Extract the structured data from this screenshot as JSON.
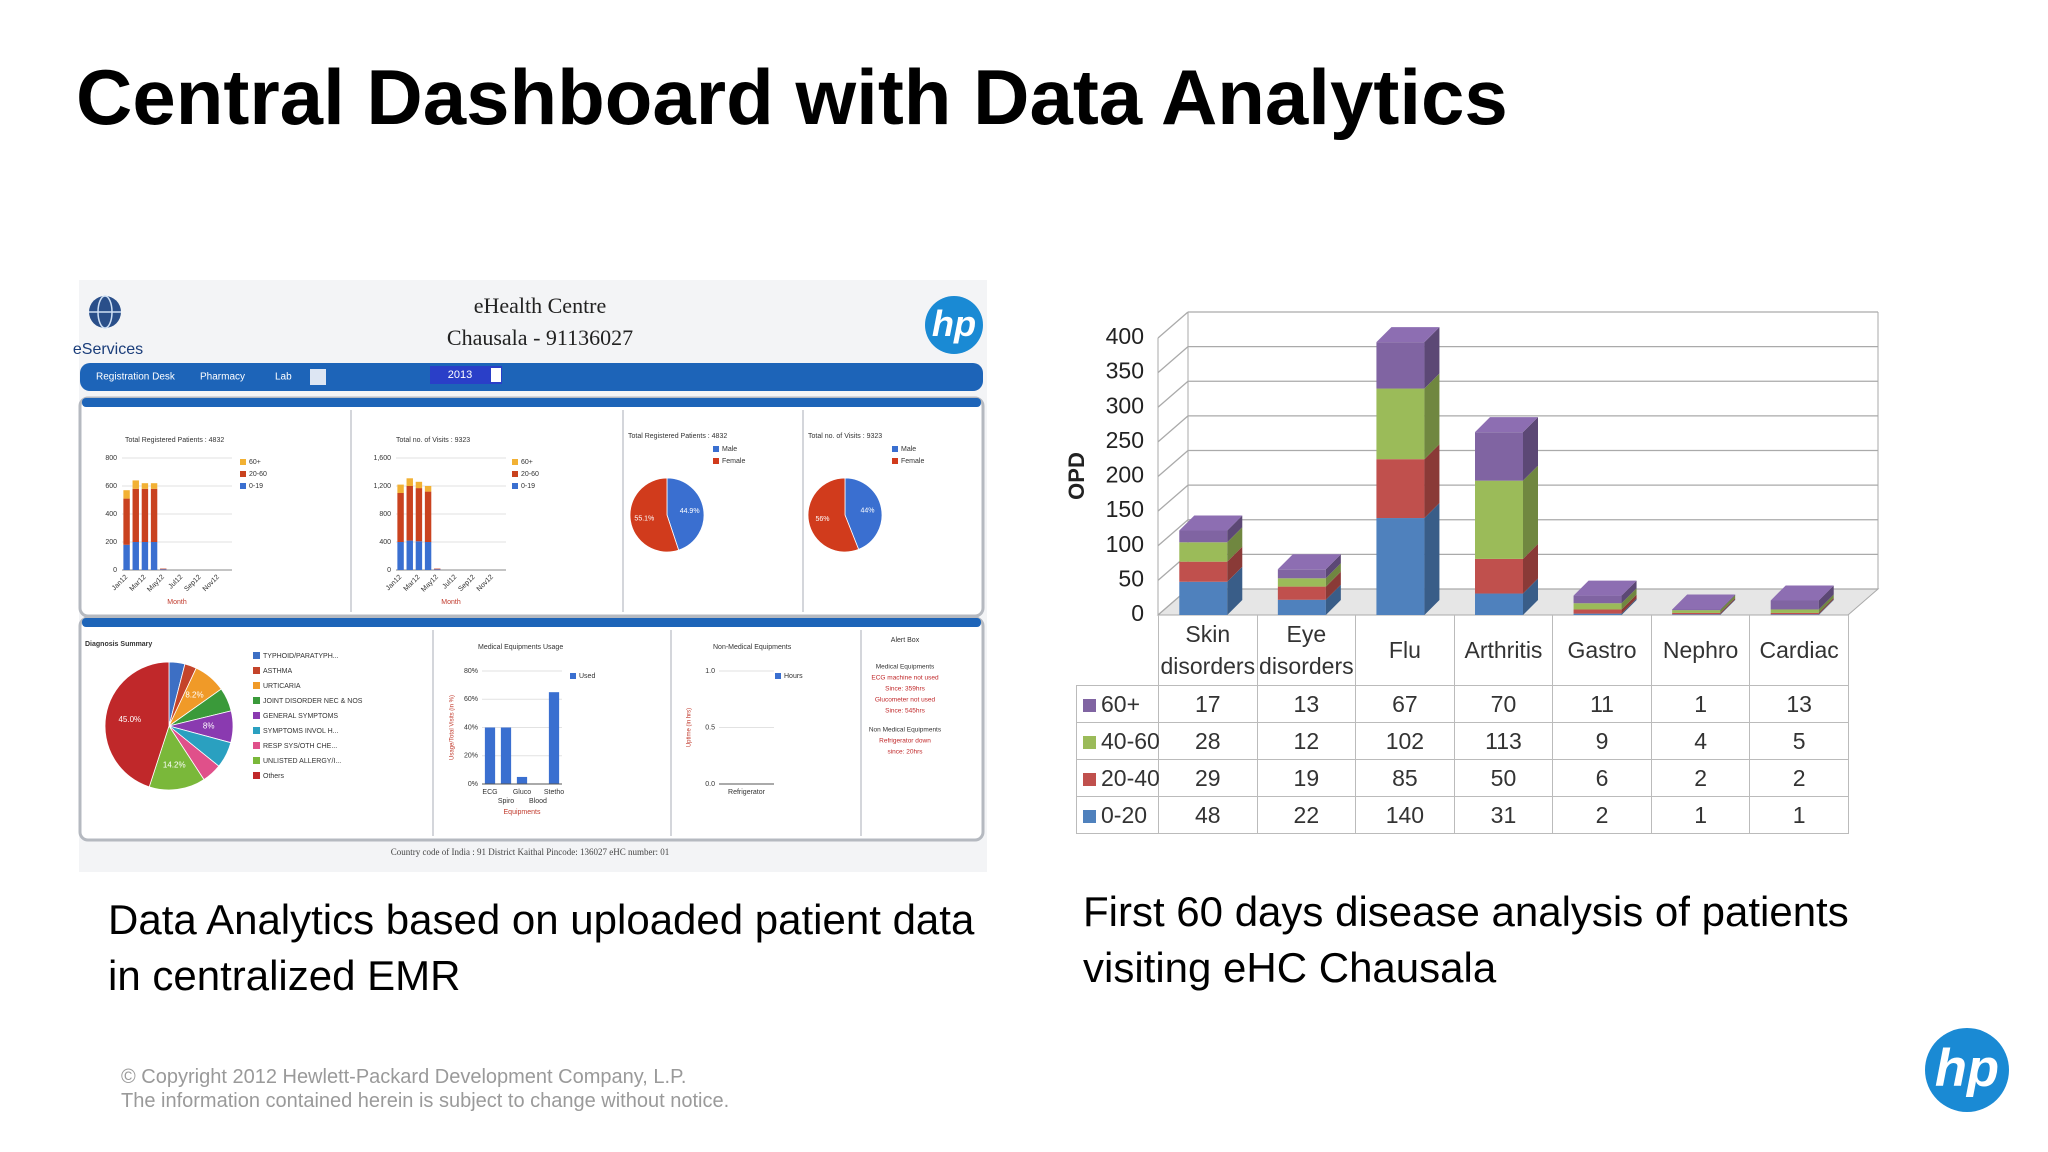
{
  "title": "Central Dashboard with Data Analytics",
  "captions": [
    "Data Analytics based on uploaded patient data in centralized EMR",
    "First 60 days disease analysis of patients visiting eHC Chausala"
  ],
  "footer": [
    "© Copyright 2012 Hewlett-Packard Development Company, L.P.",
    "The information contained herein is subject to change without notice."
  ],
  "logo": "hp",
  "dashboard": {
    "brand": "eServices",
    "heading": [
      "eHealth Centre",
      "Chausala - 91136027"
    ],
    "nav": [
      "Registration Desk",
      "Pharmacy",
      "Lab"
    ],
    "year": "2013",
    "bar_panels": [
      {
        "title": "Total Registered Patients : 4832",
        "xlabel": "Month",
        "categories": [
          "Jan12",
          null,
          "Mar12",
          null,
          "May12",
          null,
          "Jul12",
          null,
          "Sep12",
          null,
          "Nov12",
          null
        ],
        "ylim": [
          0,
          800
        ],
        "yticks": [
          0,
          200,
          400,
          600,
          800
        ],
        "series": [
          {
            "name": "60+",
            "color": "#f2b134",
            "values": [
              60,
              60,
              40,
              40,
              0,
              0,
              0,
              0,
              0,
              0,
              0,
              0
            ]
          },
          {
            "name": "20-60",
            "color": "#c9421f",
            "values": [
              330,
              380,
              380,
              380,
              5,
              0,
              0,
              0,
              0,
              0,
              0,
              0
            ]
          },
          {
            "name": "0-19",
            "color": "#3a6fd0",
            "values": [
              180,
              200,
              200,
              200,
              5,
              0,
              0,
              0,
              0,
              0,
              0,
              0
            ]
          }
        ]
      },
      {
        "title": "Total no. of Visits : 9323",
        "xlabel": "Month",
        "categories": [
          "Jan12",
          null,
          "Mar12",
          null,
          "May12",
          null,
          "Jul12",
          null,
          "Sep12",
          null,
          "Nov12",
          null
        ],
        "ylim": [
          0,
          1600
        ],
        "yticks": [
          0,
          400,
          800,
          {
            "value": 1200,
            "label": "1,200"
          },
          {
            "value": 1600,
            "label": "1,600"
          }
        ],
        "series": [
          {
            "name": "60+",
            "color": "#f2b134",
            "values": [
              120,
              110,
              90,
              80,
              0,
              0,
              0,
              0,
              0,
              0,
              0,
              0
            ]
          },
          {
            "name": "20-60",
            "color": "#c9421f",
            "values": [
              700,
              780,
              760,
              720,
              10,
              0,
              0,
              0,
              0,
              0,
              0,
              0
            ]
          },
          {
            "name": "0-19",
            "color": "#3a6fd0",
            "values": [
              400,
              420,
              410,
              400,
              10,
              0,
              0,
              0,
              0,
              0,
              0,
              0
            ]
          }
        ]
      }
    ],
    "pies": [
      {
        "title": "Total Registered Patients : 4832",
        "names": [
          "Male",
          "Female"
        ],
        "colors": [
          "#3a6fd0",
          "#d13b1c"
        ],
        "values": [
          44.9,
          55.1
        ],
        "value_labels": [
          "44.9%",
          "55.1%"
        ]
      },
      {
        "title": "Total no. of Visits : 9323",
        "names": [
          "Male",
          "Female"
        ],
        "colors": [
          "#3a6fd0",
          "#d13b1c"
        ],
        "values": [
          44,
          56
        ],
        "value_labels": [
          "44%",
          "56%"
        ]
      }
    ],
    "diagnosis": {
      "title": "Diagnosis Summary",
      "names": [
        "TYPHOID/PARATYPH...",
        "ASTHMA",
        "URTICARIA",
        "JOINT DISORDER NEC & NOS",
        "GENERAL SYMPTOMS",
        "SYMPTOMS INVOL H...",
        "RESP SYS/OTH CHE...",
        "UNLISTED ALLERGY/I...",
        "Others"
      ],
      "colors": [
        "#3d6fc4",
        "#c4442a",
        "#f09a28",
        "#3a9a3a",
        "#8a3ab0",
        "#2aa0c0",
        "#e0508a",
        "#7ab83a",
        "#c0282a"
      ],
      "values": [
        4,
        3,
        8.2,
        6,
        8,
        6.6,
        5,
        14.2,
        45.0
      ],
      "value_labels": [
        null,
        null,
        "8.2%",
        null,
        "8%",
        null,
        null,
        "14.2%",
        "45.0%"
      ]
    },
    "medical": {
      "title": "Medical Equipments Usage",
      "ylabel": "Usage/Total Visits (in %)",
      "xlabel": "Equipments",
      "legend": "Used",
      "color": "#3a6fd0",
      "categories": [
        "ECG",
        "Spiro",
        "Gluco",
        "Blood",
        "Stetho"
      ],
      "values": [
        40,
        40,
        5,
        0,
        65
      ],
      "ylim": [
        0,
        80
      ],
      "yticks": [
        {
          "value": 0,
          "label": "0%"
        },
        {
          "value": 20,
          "label": "20%"
        },
        {
          "value": 40,
          "label": "40%"
        },
        {
          "value": 60,
          "label": "60%"
        },
        {
          "value": 80,
          "label": "80%"
        }
      ]
    },
    "nonmedical": {
      "title": "Non-Medical Equipments",
      "ylabel": "Uptime (in hrs)",
      "legend": "Hours",
      "color": "#3a6fd0",
      "categories": [
        "Refrigerator"
      ],
      "values": [
        0
      ],
      "ylim": [
        0,
        1
      ],
      "yticks": [
        {
          "value": 0,
          "label": "0.0"
        },
        0.5,
        {
          "value": 1,
          "label": "1.0"
        }
      ]
    },
    "alert": {
      "title": "Alert Box",
      "lines": [
        "Medical Equipments",
        "ECG machine not used",
        "Since: 359hrs",
        "Glucometer not used",
        "Since: 545hrs",
        "Non Medical Equipments",
        "Refrigerator down",
        "since: 20hrs"
      ]
    },
    "footer": "Country code of India : 91 District Kaithal Pincode: 136027 eHC number: 01"
  },
  "chart_data": {
    "type": "bar",
    "stacked": true,
    "ylabel": "OPD",
    "categories": [
      "Skin disorders",
      "Eye disorders",
      "Flu",
      "Arthritis",
      "Gastro",
      "Nephro",
      "Cardiac"
    ],
    "ylim": [
      0,
      400
    ],
    "yticks": [
      0,
      50,
      100,
      150,
      200,
      250,
      300,
      350,
      400
    ],
    "grid": true,
    "series": [
      {
        "name": "60+",
        "color": "#8064a2",
        "values": [
          17,
          13,
          67,
          70,
          11,
          1,
          13
        ]
      },
      {
        "name": "40-60",
        "color": "#9bbb59",
        "values": [
          28,
          12,
          102,
          113,
          9,
          4,
          5
        ]
      },
      {
        "name": "20-40",
        "color": "#c0504d",
        "values": [
          29,
          19,
          85,
          50,
          6,
          2,
          2
        ]
      },
      {
        "name": "0-20",
        "color": "#4f81bd",
        "values": [
          48,
          22,
          140,
          31,
          2,
          1,
          1
        ]
      }
    ]
  }
}
